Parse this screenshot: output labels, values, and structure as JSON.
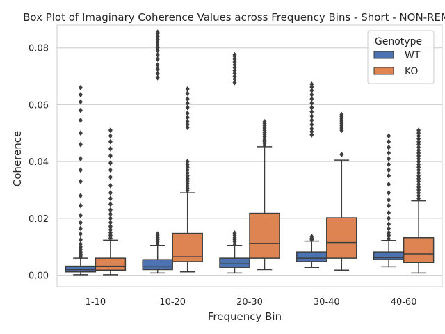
{
  "chart_data": {
    "type": "box",
    "title": "Box Plot of Imaginary Coherence Values across Frequency Bins - Short - NON-REM",
    "xlabel": "Frequency Bin",
    "ylabel": "Coherence",
    "ylim": [
      -0.004,
      0.088
    ],
    "yticks": [
      "0.00",
      "0.02",
      "0.04",
      "0.06",
      "0.08"
    ],
    "categories": [
      "1-10",
      "10-20",
      "20-30",
      "30-40",
      "40-60"
    ],
    "grid": "horizontal",
    "legend": {
      "title": "Genotype",
      "position": "top-right"
    },
    "series": [
      {
        "name": "WT",
        "color": "#4c72b0",
        "boxes": [
          {
            "min": 0.0002,
            "q1": 0.0012,
            "median": 0.002,
            "q3": 0.0032,
            "max": 0.006,
            "outliers": [
              0.0064,
              0.0068,
              0.0074,
              0.0082,
              0.009,
              0.01,
              0.011,
              0.0125,
              0.0145,
              0.0165,
              0.0185,
              0.021,
              0.0245,
              0.028,
              0.033,
              0.037,
              0.041,
              0.046,
              0.05,
              0.0545,
              0.058,
              0.061,
              0.0635,
              0.066
            ]
          },
          {
            "min": 0.0008,
            "q1": 0.002,
            "median": 0.003,
            "q3": 0.0055,
            "max": 0.0105,
            "outliers": [
              0.011,
              0.0118,
              0.0125,
              0.0132,
              0.014,
              0.0145,
              0.0695,
              0.071,
              0.0725,
              0.074,
              0.076,
              0.0775,
              0.079,
              0.08,
              0.081,
              0.082,
              0.083,
              0.084,
              0.085,
              0.0855
            ]
          },
          {
            "min": 0.0008,
            "q1": 0.0028,
            "median": 0.004,
            "q3": 0.006,
            "max": 0.0105,
            "outliers": [
              0.011,
              0.0118,
              0.0125,
              0.0132,
              0.014,
              0.0148,
              0.0678,
              0.069,
              0.07,
              0.071,
              0.072,
              0.073,
              0.074,
              0.075,
              0.076,
              0.077,
              0.0775
            ]
          },
          {
            "min": 0.0028,
            "q1": 0.0048,
            "median": 0.006,
            "q3": 0.0082,
            "max": 0.012,
            "outliers": [
              0.0125,
              0.013,
              0.0136,
              0.0494,
              0.0505,
              0.0515,
              0.053,
              0.0545,
              0.056,
              0.0575,
              0.059,
              0.0605,
              0.062,
              0.0635,
              0.065,
              0.0662,
              0.0672
            ]
          },
          {
            "min": 0.003,
            "q1": 0.0055,
            "median": 0.0062,
            "q3": 0.0082,
            "max": 0.0122,
            "outliers": [
              0.0128,
              0.014,
              0.015,
              0.0165,
              0.018,
              0.02,
              0.022,
              0.0245,
              0.0265,
              0.029,
              0.032,
              0.035,
              0.037,
              0.039,
              0.041,
              0.043,
              0.045,
              0.047,
              0.049
            ]
          }
        ]
      },
      {
        "name": "KO",
        "color": "#dd8452",
        "boxes": [
          {
            "min": 0.0002,
            "q1": 0.0018,
            "median": 0.0032,
            "q3": 0.006,
            "max": 0.0123,
            "outliers": [
              0.013,
              0.014,
              0.015,
              0.016,
              0.0172,
              0.0185,
              0.02,
              0.0215,
              0.023,
              0.025,
              0.027,
              0.029,
              0.0315,
              0.0345,
              0.037,
              0.0395,
              0.042,
              0.0445,
              0.047,
              0.049,
              0.051
            ]
          },
          {
            "min": 0.0012,
            "q1": 0.0048,
            "median": 0.0065,
            "q3": 0.0147,
            "max": 0.029,
            "outliers": [
              0.0298,
              0.0306,
              0.0314,
              0.0322,
              0.033,
              0.034,
              0.035,
              0.036,
              0.037,
              0.038,
              0.039,
              0.04,
              0.052,
              0.053,
              0.054,
              0.0555,
              0.057,
              0.059,
              0.0605,
              0.062,
              0.064,
              0.0655
            ]
          },
          {
            "min": 0.002,
            "q1": 0.006,
            "median": 0.0112,
            "q3": 0.0218,
            "max": 0.0452,
            "outliers": [
              0.0458,
              0.0464,
              0.047,
              0.0476,
              0.0482,
              0.0488,
              0.0495,
              0.0502,
              0.051,
              0.0518,
              0.0526,
              0.0534,
              0.054
            ]
          },
          {
            "min": 0.0018,
            "q1": 0.006,
            "median": 0.0115,
            "q3": 0.0202,
            "max": 0.0405,
            "outliers": [
              0.0425,
              0.051,
              0.0518,
              0.0526,
              0.0534,
              0.0542,
              0.055,
              0.0558,
              0.0565
            ]
          },
          {
            "min": 0.0008,
            "q1": 0.0045,
            "median": 0.0075,
            "q3": 0.0132,
            "max": 0.0262,
            "outliers": [
              0.027,
              0.028,
              0.029,
              0.03,
              0.031,
              0.032,
              0.033,
              0.034,
              0.035,
              0.036,
              0.037,
              0.038,
              0.039,
              0.04,
              0.041,
              0.042,
              0.043,
              0.044,
              0.045,
              0.046,
              0.047,
              0.048,
              0.049,
              0.05,
              0.051
            ]
          }
        ]
      }
    ]
  }
}
